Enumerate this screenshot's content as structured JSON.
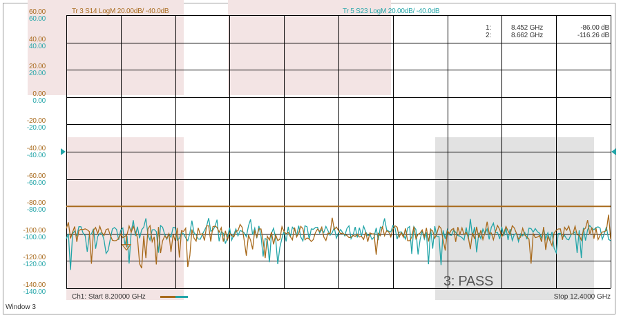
{
  "window": {
    "label": "Window 3"
  },
  "traces": {
    "tr3": {
      "label": "Tr 3  S14 LogM 20.00dB/  -40.0dB",
      "color": "#a86a1c"
    },
    "tr5": {
      "label": "Tr 5  S23 LogM 20.00dB/  -40.0dB",
      "color": "#23a5a8"
    }
  },
  "y_scale": {
    "brown_ticks": [
      "60.00",
      "40.00",
      "20.00",
      "0.00",
      "-20.00",
      "-40.00",
      "-60.00",
      "-80.00",
      "-100.00",
      "-120.00",
      "-140.00"
    ],
    "teal_ticks": [
      "60.00",
      "40.00",
      "20.00",
      "0.00",
      "-20.00",
      "-40.00",
      "-60.00",
      "-80.00",
      "-100.00",
      "-120.00",
      "-140.00"
    ]
  },
  "markers": [
    {
      "index": "1:",
      "freq": "8.452 GHz",
      "value": "-86.00 dB"
    },
    {
      "index": "2:",
      "freq": "8.662 GHz",
      "value": "-116.26 dB"
    }
  ],
  "limit_test": {
    "label": "3: PASS"
  },
  "channel": {
    "start_label": "Ch1: Start  8.20000 GHz",
    "stop_label": "Stop  12.4000 GHz"
  },
  "colors": {
    "grid": "#000000",
    "brown": "#a86a1c",
    "teal": "#23a5a8",
    "pink_region": "#f3e4e4",
    "gray_region": "#e2e2e2"
  },
  "chart_data": {
    "type": "line",
    "x_range_ghz": [
      8.2,
      12.4
    ],
    "ylim": [
      -140,
      60
    ],
    "limit_line_db": -80,
    "series": [
      {
        "name": "S14",
        "noise_floor_db": -100
      },
      {
        "name": "S23",
        "noise_floor_db": -100
      }
    ]
  }
}
